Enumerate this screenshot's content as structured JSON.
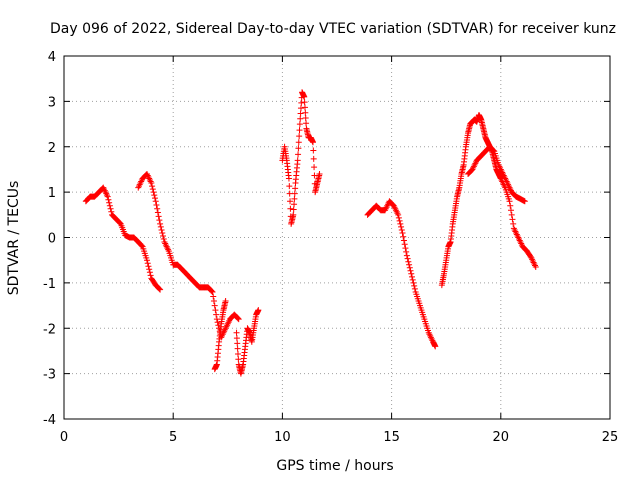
{
  "chart_data": {
    "type": "scatter",
    "title": "Day 096 of 2022, Sidereal Day-to-day VTEC variation (SDTVAR) for receiver kunz",
    "xlabel": "GPS time / hours",
    "ylabel": "SDTVAR / TECUs",
    "xlim": [
      0,
      25
    ],
    "ylim": [
      -4,
      4
    ],
    "xticks": [
      0,
      5,
      10,
      15,
      20,
      25
    ],
    "yticks": [
      -4,
      -3,
      -2,
      -1,
      0,
      1,
      2,
      3,
      4
    ],
    "grid": true,
    "marker": "plus",
    "color": "#ff0000",
    "segments": [
      {
        "x": [
          1.0,
          1.2,
          1.4,
          1.6,
          1.8,
          2.0,
          2.2,
          2.4,
          2.6,
          2.8,
          3.0,
          3.2,
          3.4,
          3.6,
          3.8,
          4.0,
          4.2,
          4.4
        ],
        "y": [
          0.8,
          0.9,
          0.9,
          1.0,
          1.1,
          0.9,
          0.5,
          0.4,
          0.3,
          0.05,
          0.0,
          0.0,
          -0.1,
          -0.2,
          -0.5,
          -0.9,
          -1.05,
          -1.15
        ]
      },
      {
        "x": [
          3.4,
          3.6,
          3.8,
          4.0,
          4.2,
          4.4,
          4.6,
          4.8,
          5.0,
          5.2,
          5.4,
          5.6,
          5.8,
          6.0,
          6.2,
          6.4,
          6.6,
          6.8,
          7.0,
          7.2,
          7.4,
          7.6,
          7.8,
          8.0
        ],
        "y": [
          1.1,
          1.3,
          1.4,
          1.2,
          0.8,
          0.3,
          -0.1,
          -0.3,
          -0.6,
          -0.6,
          -0.7,
          -0.8,
          -0.9,
          -1.0,
          -1.1,
          -1.1,
          -1.1,
          -1.2,
          -1.8,
          -2.2,
          -2.0,
          -1.8,
          -1.7,
          -1.8
        ]
      },
      {
        "x": [
          6.9,
          7.0,
          7.1,
          7.2,
          7.3,
          7.4
        ],
        "y": [
          -2.9,
          -2.8,
          -2.3,
          -1.9,
          -1.6,
          -1.4
        ]
      },
      {
        "x": [
          7.9,
          8.0,
          8.1,
          8.2,
          8.3,
          8.4,
          8.5,
          8.6,
          8.7,
          8.8,
          8.9
        ],
        "y": [
          -2.1,
          -2.8,
          -3.0,
          -2.8,
          -2.4,
          -2.0,
          -2.1,
          -2.3,
          -2.0,
          -1.7,
          -1.6
        ]
      },
      {
        "x": [
          10.0,
          10.1,
          10.2,
          10.3,
          10.4,
          10.5,
          10.6,
          10.7,
          10.8,
          10.9,
          11.0,
          11.1,
          11.2,
          11.3,
          11.4,
          11.5,
          11.6,
          11.7
        ],
        "y": [
          1.7,
          2.0,
          1.7,
          1.3,
          0.3,
          0.5,
          1.2,
          1.7,
          2.5,
          3.2,
          3.1,
          2.4,
          2.2,
          2.2,
          2.1,
          1.0,
          1.2,
          1.4
        ]
      },
      {
        "x": [
          13.9,
          14.1,
          14.3,
          14.5,
          14.7,
          14.9,
          15.1,
          15.3,
          15.5,
          15.7,
          15.9,
          16.1,
          16.3,
          16.5,
          16.7,
          16.9,
          17.0
        ],
        "y": [
          0.5,
          0.6,
          0.7,
          0.6,
          0.6,
          0.8,
          0.7,
          0.5,
          0.1,
          -0.4,
          -0.8,
          -1.2,
          -1.5,
          -1.8,
          -2.1,
          -2.3,
          -2.4
        ]
      },
      {
        "x": [
          17.3,
          17.4,
          17.5,
          17.6,
          17.7,
          17.8,
          17.9,
          18.0,
          18.1,
          18.2,
          18.3,
          18.4,
          18.5,
          18.6,
          18.7,
          18.8,
          18.9,
          19.0,
          19.1,
          19.2,
          19.3,
          19.4,
          19.5,
          19.6,
          19.7,
          19.8,
          19.9,
          20.0,
          20.2,
          20.4,
          20.6,
          20.8,
          21.0,
          21.2,
          21.4,
          21.6
        ],
        "y": [
          -1.05,
          -0.8,
          -0.5,
          -0.2,
          -0.1,
          0.3,
          0.6,
          0.9,
          1.1,
          1.4,
          1.6,
          2.0,
          2.3,
          2.5,
          2.55,
          2.6,
          2.55,
          2.7,
          2.6,
          2.4,
          2.2,
          2.1,
          2.0,
          1.9,
          1.7,
          1.5,
          1.4,
          1.3,
          1.1,
          0.8,
          0.2,
          0.0,
          -0.2,
          -0.3,
          -0.45,
          -0.65
        ]
      },
      {
        "x": [
          18.5,
          18.7,
          18.9,
          19.1,
          19.3,
          19.5,
          19.7,
          19.9,
          20.1,
          20.3,
          20.5,
          20.7,
          20.9,
          21.1
        ],
        "y": [
          1.4,
          1.5,
          1.7,
          1.8,
          1.9,
          2.0,
          1.9,
          1.6,
          1.4,
          1.2,
          1.0,
          0.9,
          0.85,
          0.8
        ]
      }
    ]
  }
}
